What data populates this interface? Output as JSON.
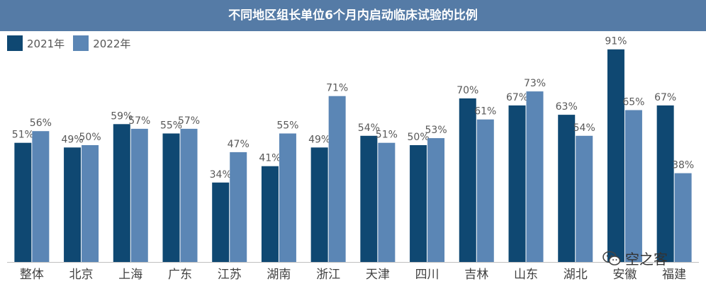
{
  "title": "不同地区组长单位6个月内启动临床试验的比例",
  "colors": {
    "title_bar": "#557ba6",
    "s2021": "#0f4872",
    "s2022": "#5b86b5",
    "label": "#595959",
    "axis": "#bfbfbf"
  },
  "watermark": {
    "text": "空之客",
    "icon": "wechat-icon"
  },
  "chart_data": {
    "type": "bar",
    "title": "不同地区组长单位6个月内启动临床试验的比例",
    "xlabel": "",
    "ylabel": "",
    "ylim": [
      0,
      100
    ],
    "grid": false,
    "legend_position": "top-left",
    "categories": [
      "整体",
      "北京",
      "上海",
      "广东",
      "江苏",
      "湖南",
      "浙江",
      "天津",
      "四川",
      "吉林",
      "山东",
      "湖北",
      "安徽",
      "福建"
    ],
    "series": [
      {
        "name": "2021年",
        "values": [
          51,
          49,
          59,
          55,
          34,
          41,
          49,
          54,
          50,
          70,
          67,
          63,
          91,
          67
        ],
        "labels": [
          "51%",
          "49%",
          "59%",
          "55%",
          "34%",
          "41%",
          "49%",
          "54%",
          "50%",
          "70%",
          "67%",
          "63%",
          "91%",
          "67%"
        ]
      },
      {
        "name": "2022年",
        "values": [
          56,
          50,
          57,
          57,
          47,
          55,
          71,
          51,
          53,
          61,
          73,
          54,
          65,
          38
        ],
        "labels": [
          "56%",
          "50%",
          "57%",
          "57%",
          "47%",
          "55%",
          "71%",
          "51%",
          "53%",
          "61%",
          "73%",
          "54%",
          "65%",
          "38%"
        ]
      }
    ]
  }
}
